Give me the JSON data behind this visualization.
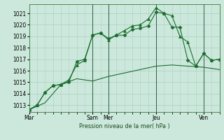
{
  "bg_color": "#cce8dc",
  "grid_color": "#aacfbf",
  "line_color": "#1a6e2e",
  "title": "Pression niveau de la mer( hPa )",
  "ylim": [
    1012.4,
    1021.8
  ],
  "yticks": [
    1013,
    1014,
    1015,
    1016,
    1017,
    1018,
    1019,
    1020,
    1021
  ],
  "xtick_labels": [
    "Mar",
    "Sam",
    "Mer",
    "Jeu",
    "Ven"
  ],
  "xtick_positions": [
    0,
    48,
    60,
    96,
    132
  ],
  "vlines": [
    48,
    60,
    96,
    132
  ],
  "total_hours": 144,
  "series1_x": [
    0,
    6,
    12,
    18,
    24,
    30,
    36,
    42,
    48,
    54,
    60,
    66,
    72,
    78,
    84,
    90,
    96,
    102,
    108,
    114,
    120,
    126,
    132,
    138,
    144
  ],
  "series1_y": [
    1012.6,
    1013.0,
    1014.1,
    1014.7,
    1014.8,
    1015.0,
    1016.8,
    1017.0,
    1019.1,
    1019.3,
    1018.8,
    1019.1,
    1019.1,
    1019.6,
    1019.7,
    1019.9,
    1021.1,
    1021.0,
    1019.8,
    1019.8,
    1016.9,
    1016.4,
    1017.5,
    1016.9,
    1017.0
  ],
  "series1_marker": "D",
  "series1_ms": 2.5,
  "series2_x": [
    0,
    6,
    12,
    18,
    24,
    30,
    36,
    42,
    48,
    54,
    60,
    66,
    72,
    78,
    84,
    90,
    96,
    102,
    108,
    114,
    120,
    126,
    132,
    138,
    144
  ],
  "series2_y": [
    1012.6,
    1013.0,
    1014.1,
    1014.7,
    1014.8,
    1015.2,
    1016.5,
    1016.9,
    1019.1,
    1019.3,
    1018.7,
    1019.1,
    1019.5,
    1019.9,
    1020.0,
    1020.5,
    1021.5,
    1021.0,
    1020.8,
    1019.0,
    1018.5,
    1016.4,
    1017.5,
    1016.9,
    1017.0
  ],
  "series2_marker": "^",
  "series2_ms": 2.8,
  "series3_x": [
    0,
    12,
    24,
    36,
    48,
    60,
    72,
    84,
    96,
    108,
    120,
    132,
    144
  ],
  "series3_y": [
    1012.6,
    1013.2,
    1014.8,
    1015.3,
    1015.1,
    1015.5,
    1015.8,
    1016.1,
    1016.4,
    1016.5,
    1016.4,
    1016.3,
    1016.1
  ]
}
